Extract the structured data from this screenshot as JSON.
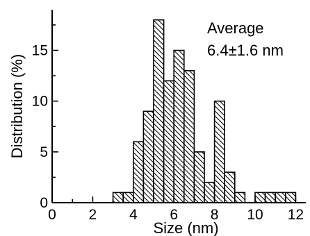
{
  "chart_data": {
    "type": "bar",
    "xlabel": "Size (nm)",
    "ylabel": "Distribution (%)",
    "xlim": [
      0,
      12.5
    ],
    "ylim": [
      0,
      19
    ],
    "xticks": [
      0,
      2,
      4,
      6,
      8,
      10,
      12
    ],
    "xtick_labels": [
      "0",
      "2",
      "4",
      "6",
      "8",
      "10",
      "12"
    ],
    "yticks": [
      0,
      5,
      10,
      15
    ],
    "ytick_labels": [
      "0",
      "5",
      "10",
      "15"
    ],
    "bin_width": 0.5,
    "bins": [
      {
        "x": 3.0,
        "value": 1
      },
      {
        "x": 3.5,
        "value": 1
      },
      {
        "x": 4.0,
        "value": 6
      },
      {
        "x": 4.5,
        "value": 9
      },
      {
        "x": 5.0,
        "value": 18
      },
      {
        "x": 5.5,
        "value": 12
      },
      {
        "x": 6.0,
        "value": 15
      },
      {
        "x": 6.5,
        "value": 13
      },
      {
        "x": 7.0,
        "value": 5
      },
      {
        "x": 7.5,
        "value": 2
      },
      {
        "x": 8.0,
        "value": 10
      },
      {
        "x": 8.5,
        "value": 3
      },
      {
        "x": 9.0,
        "value": 1
      },
      {
        "x": 10.0,
        "value": 1
      },
      {
        "x": 10.5,
        "value": 1
      },
      {
        "x": 11.0,
        "value": 1
      },
      {
        "x": 11.5,
        "value": 1
      }
    ],
    "annotation": {
      "line1": "Average",
      "line2": "6.4±1.6 nm"
    },
    "fill": "hatched",
    "colors": {
      "bar_stroke": "#000000",
      "hatch": "#000000",
      "axis": "#000000"
    }
  }
}
